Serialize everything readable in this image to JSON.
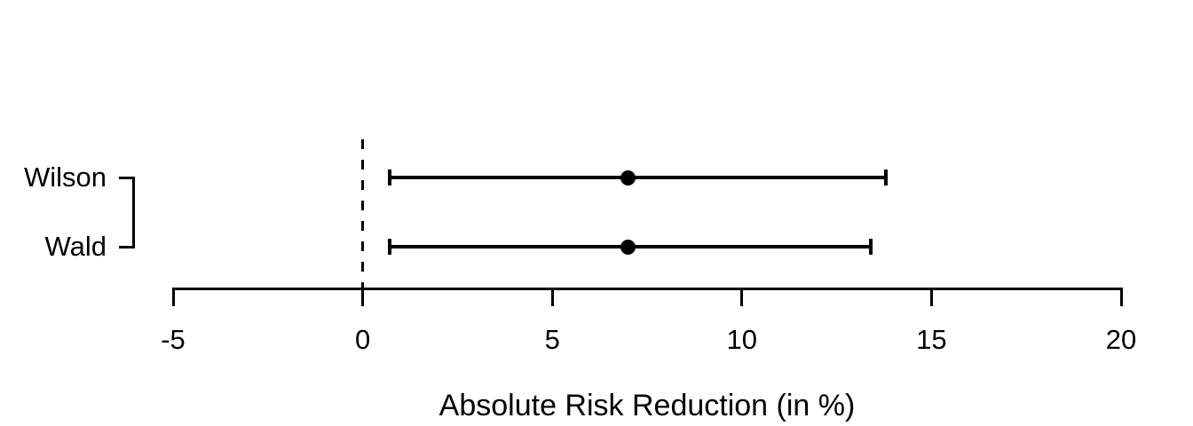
{
  "chart_data": {
    "type": "errorbar",
    "title": "",
    "xlabel": "Absolute Risk Reduction (in %)",
    "ylabel": "",
    "xlim": [
      -5,
      20
    ],
    "x_ticks": [
      -5,
      0,
      5,
      10,
      15,
      20
    ],
    "reference_line_x": 0,
    "grid": false,
    "legend": false,
    "series": [
      {
        "name": "Wilson",
        "estimate": 7,
        "ci_low": 0.7,
        "ci_high": 13.8
      },
      {
        "name": "Wald",
        "estimate": 7,
        "ci_low": 0.7,
        "ci_high": 13.4
      }
    ]
  },
  "colors": {
    "foreground": "#000000",
    "background": "#ffffff"
  }
}
